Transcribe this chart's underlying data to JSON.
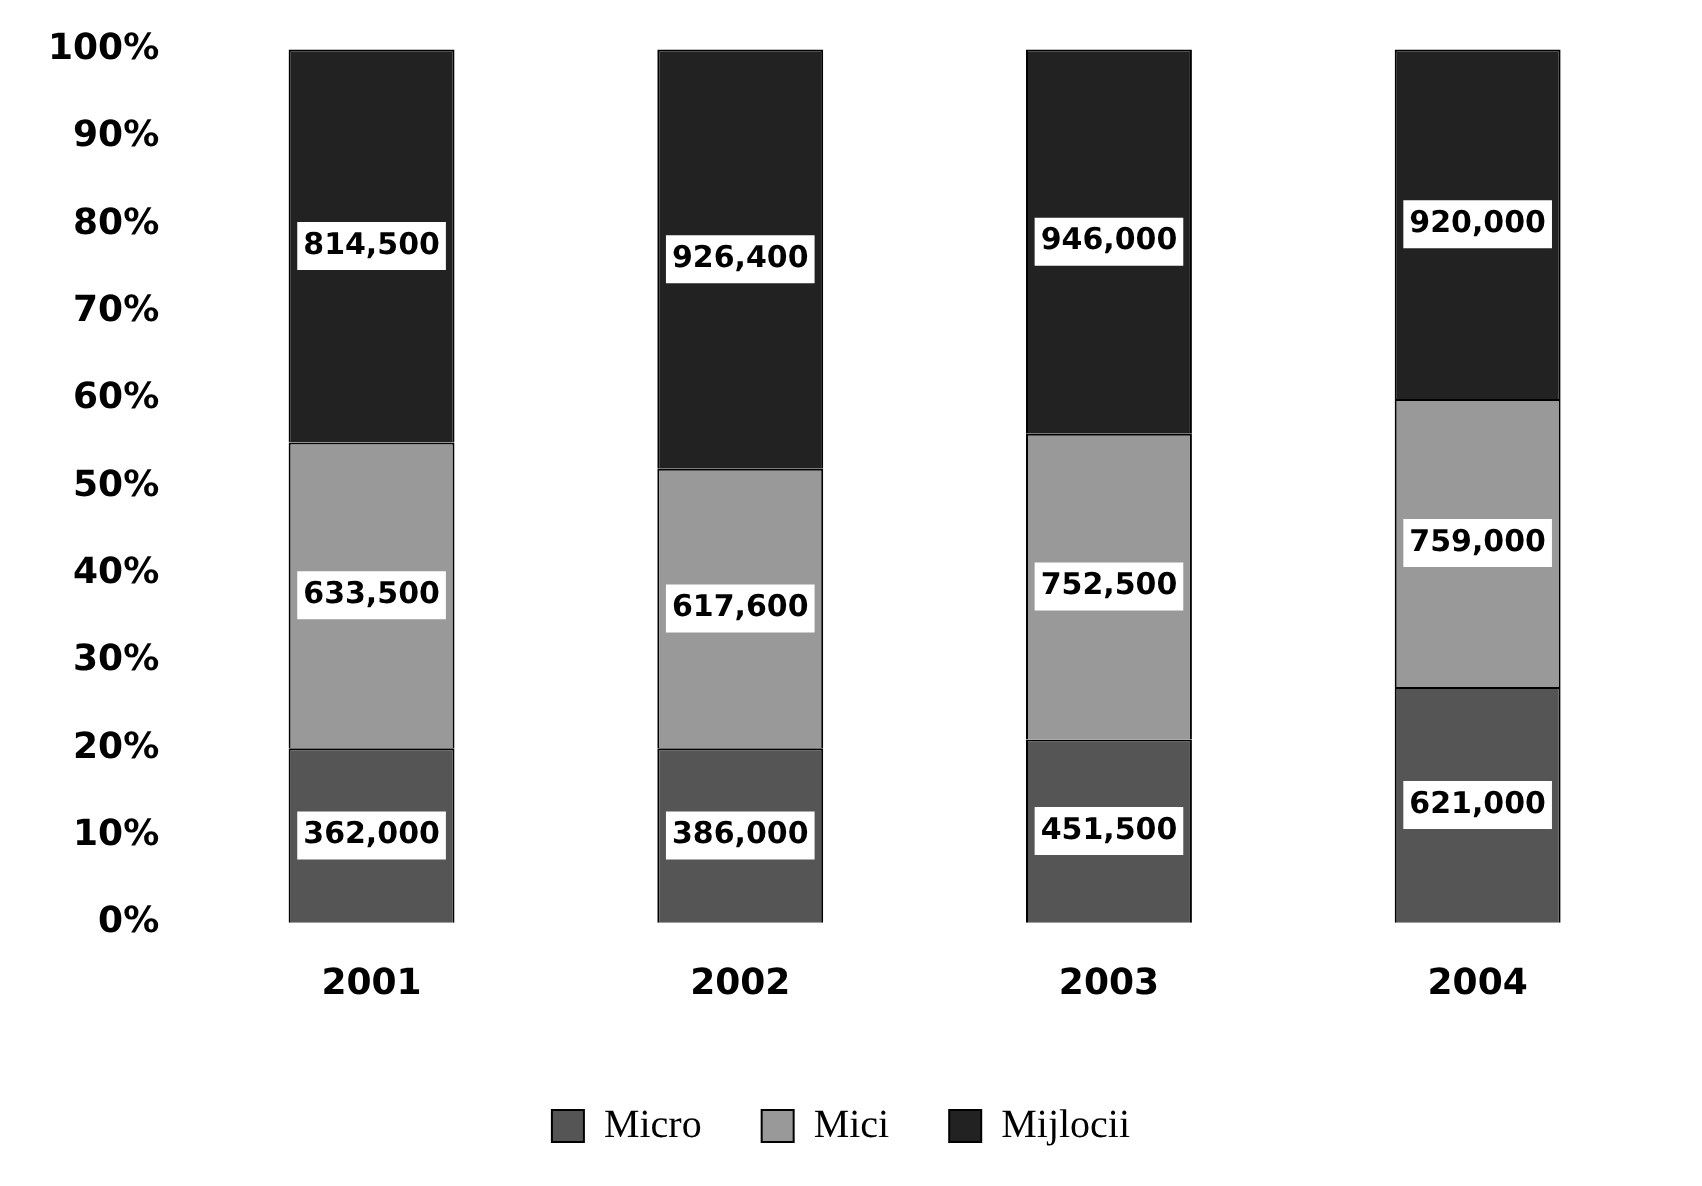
{
  "chart_data": {
    "type": "bar",
    "stacked": true,
    "categories": [
      "2001",
      "2002",
      "2003",
      "2004"
    ],
    "series": [
      {
        "name": "Micro",
        "color": "#555555",
        "values": [
          20,
          20,
          21,
          27
        ]
      },
      {
        "name": "Mici",
        "color": "#999999",
        "values": [
          35,
          32,
          35,
          33
        ]
      },
      {
        "name": "Mijlocii",
        "color": "#222222",
        "values": [
          45,
          48,
          44,
          40
        ]
      }
    ],
    "annotations": [
      "362,000",
      "386,000",
      "451,500",
      "621,000",
      "633,500",
      "617,600",
      "752,500",
      "759,000",
      "814,500",
      "926,400",
      "946,000",
      "920,000"
    ],
    "ylim": [
      0,
      100
    ],
    "yticks": [
      {
        "value": 0,
        "label": "0%"
      },
      {
        "value": 10,
        "label": "10%"
      },
      {
        "value": 20,
        "label": "20%"
      },
      {
        "value": 30,
        "label": "30%"
      },
      {
        "value": 40,
        "label": "40%"
      },
      {
        "value": 50,
        "label": "50%"
      },
      {
        "value": 60,
        "label": "60%"
      },
      {
        "value": 70,
        "label": "70%"
      },
      {
        "value": 80,
        "label": "80%"
      },
      {
        "value": 90,
        "label": "90%"
      },
      {
        "value": 100,
        "label": "100%"
      }
    ],
    "grid": false,
    "legend": "bottom"
  }
}
